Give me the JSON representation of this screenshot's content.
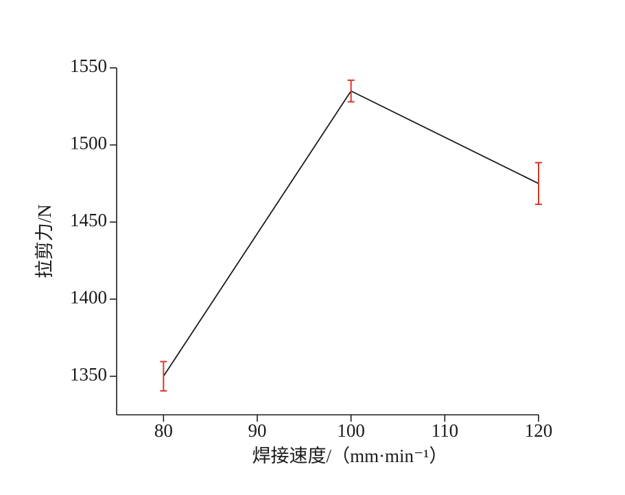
{
  "chart_data": {
    "type": "line",
    "xlabel": "焊接速度/（mm·min⁻¹）",
    "ylabel": "拉剪力/N",
    "x": [
      80,
      100,
      120
    ],
    "series": [
      {
        "color": "#1a1a1a",
        "error_color": "#d9352b",
        "values": [
          1350,
          1535,
          1475
        ],
        "errors": [
          9.5,
          7,
          13.5
        ]
      }
    ],
    "xlim": [
      75,
      120
    ],
    "xticks": [
      80,
      90,
      100,
      110,
      120
    ],
    "ylim": [
      1325,
      1550
    ],
    "yticks": [
      1350,
      1400,
      1450,
      1500,
      1550
    ],
    "grid": false
  }
}
